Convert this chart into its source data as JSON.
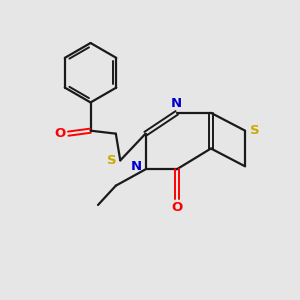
{
  "background_color": "#e6e6e6",
  "bond_color": "#1a1a1a",
  "atom_colors": {
    "O": "#ff0000",
    "N": "#0000cc",
    "S": "#ccaa00",
    "C": "#1a1a1a"
  },
  "figsize": [
    3.0,
    3.0
  ],
  "dpi": 100
}
